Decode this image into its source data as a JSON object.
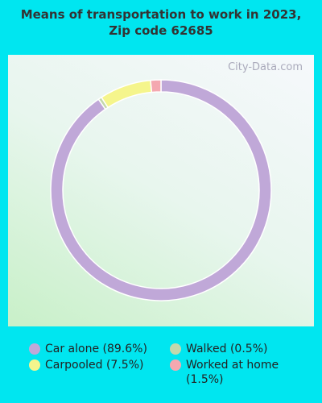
{
  "chart_data": {
    "type": "donut",
    "title": "Means of transportation to work in 2023, Zip code 62685",
    "watermark": "City-Data.com",
    "categories": [
      "Car alone (89.6%)",
      "Carpooled (7.5%)",
      "Walked (0.5%)",
      "Worked at home (1.5%)"
    ],
    "values": [
      89.6,
      7.5,
      0.5,
      1.5
    ],
    "colors": [
      "#c0a8d8",
      "#f5f58c",
      "#c4d8ac",
      "#f4a8b0"
    ]
  }
}
